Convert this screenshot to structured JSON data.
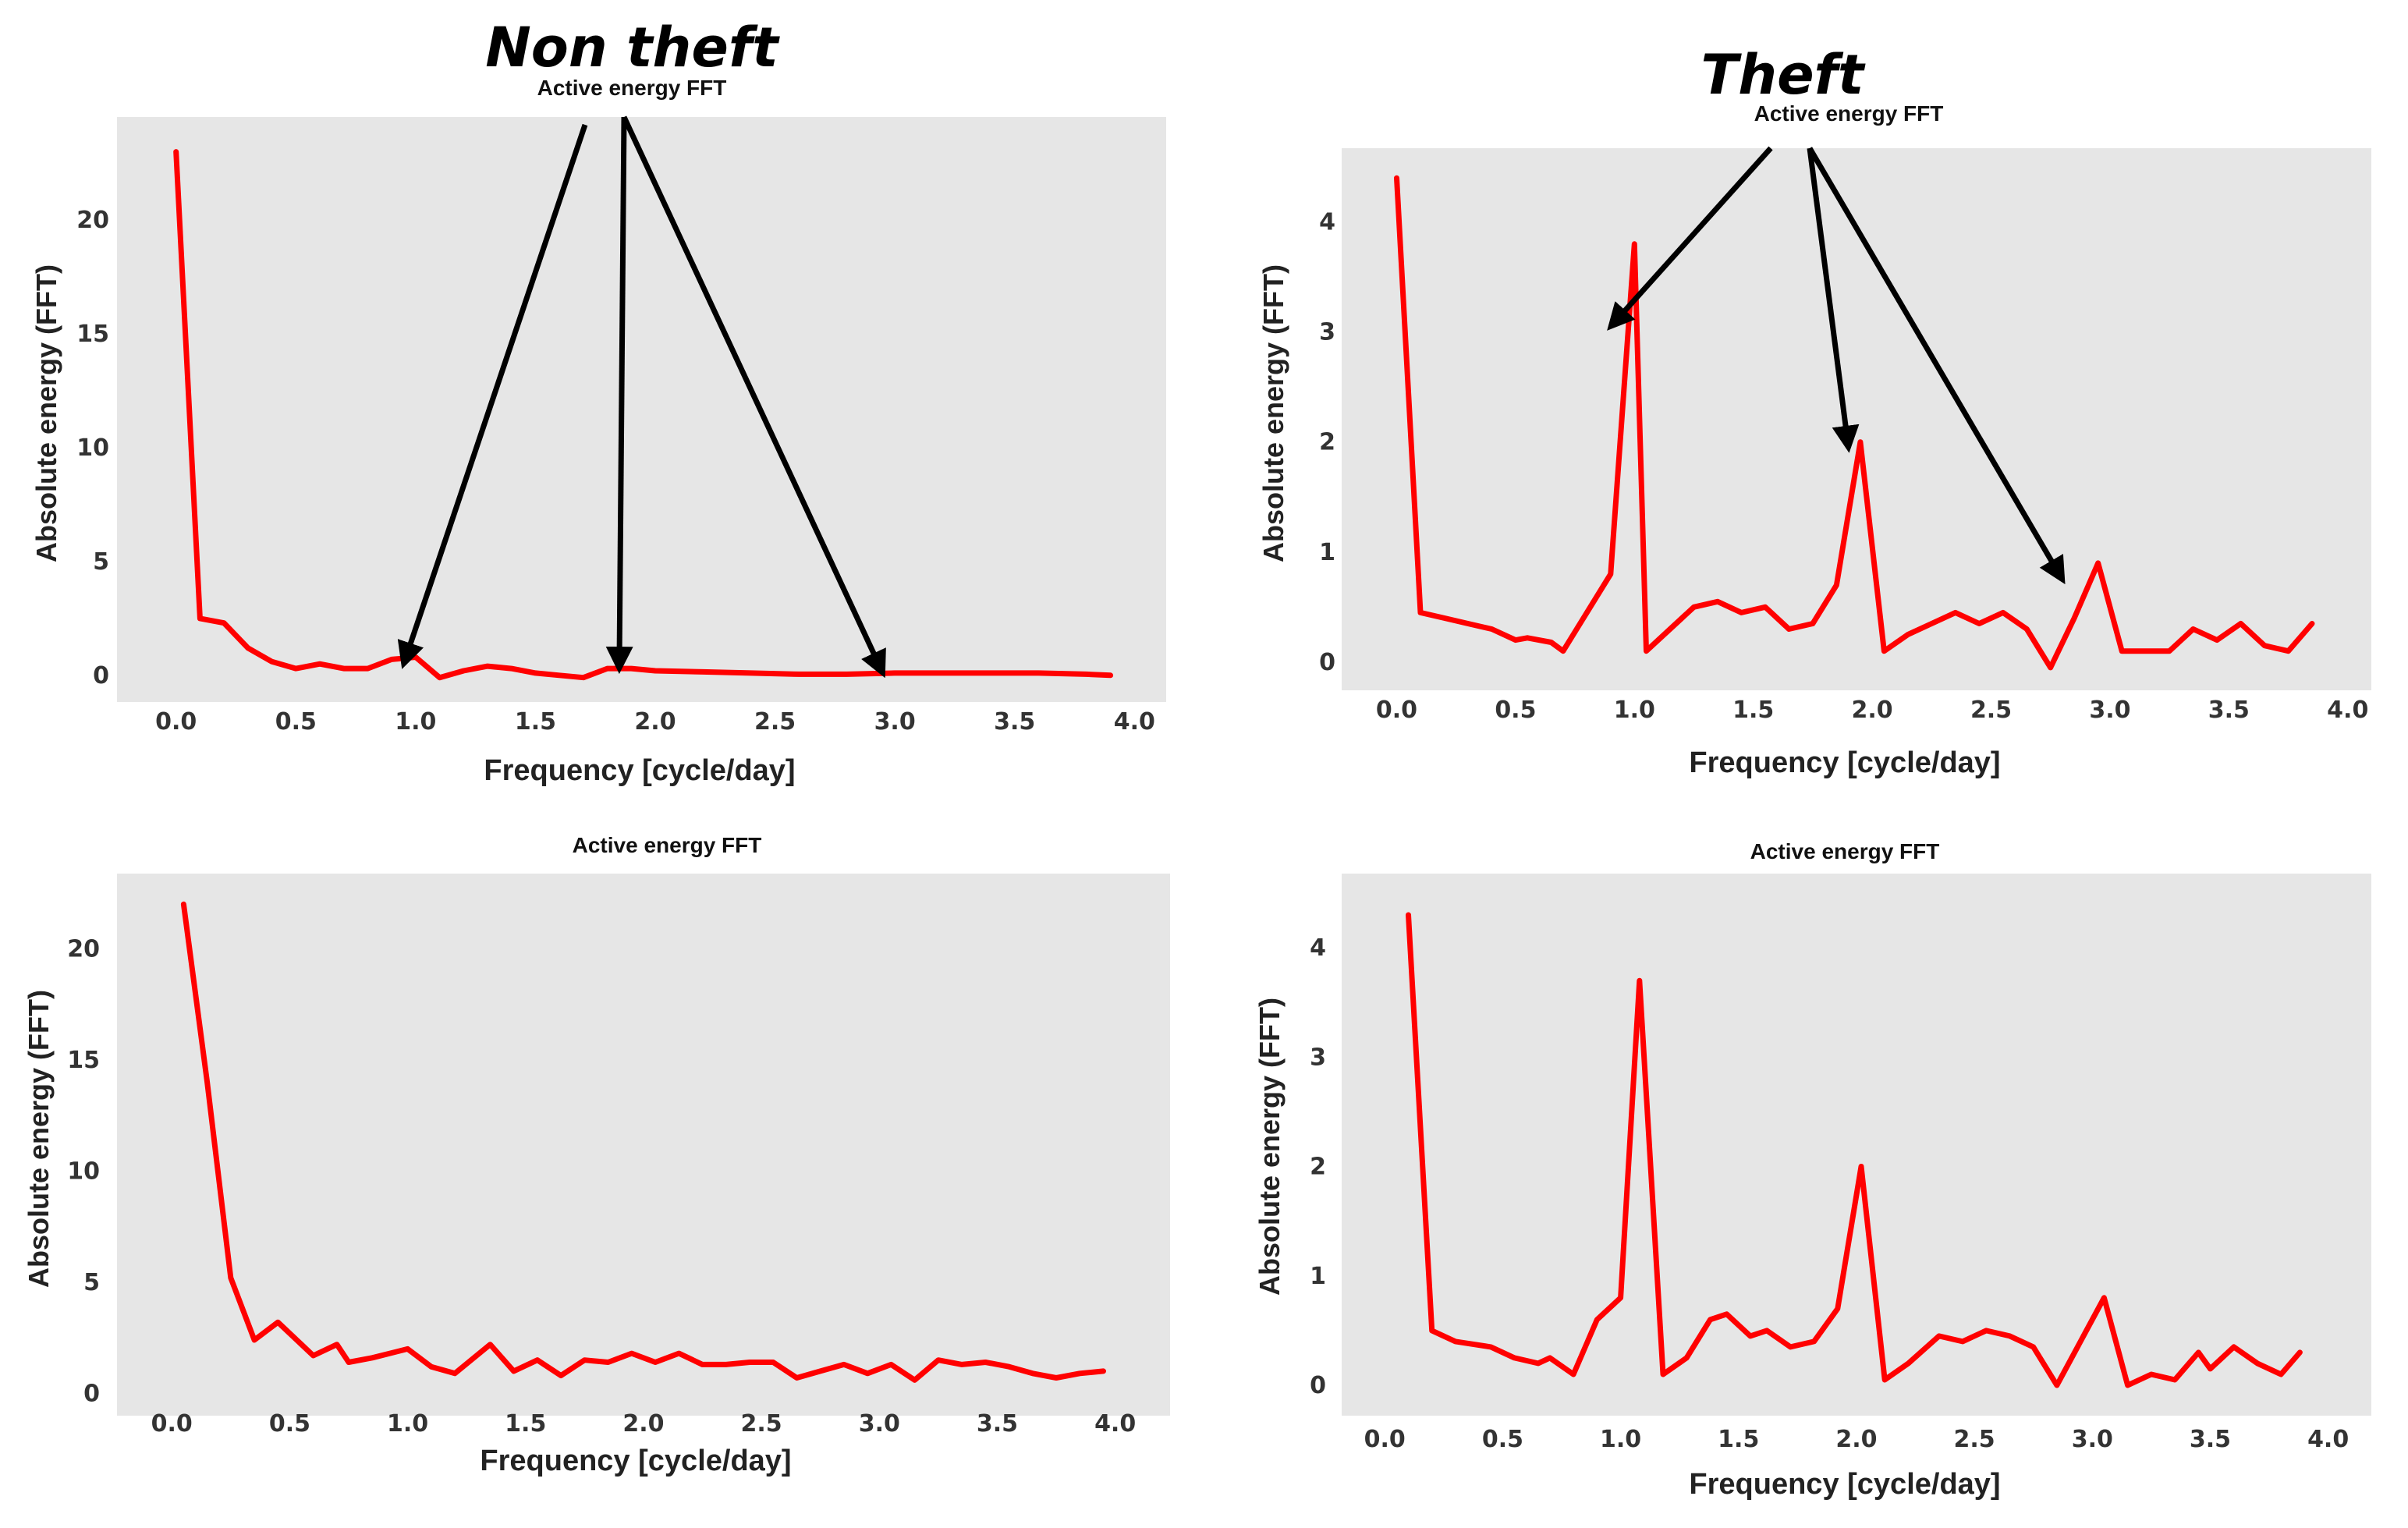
{
  "headers": {
    "left": "Non theft",
    "right": "Theft"
  },
  "colors": {
    "line": "#ff0000",
    "panel_bg": "#e6e6e6",
    "arrow": "#000000"
  },
  "chart_data": [
    {
      "id": "nontheft_top",
      "type": "line",
      "title": "Active energy FFT",
      "xlabel": "Frequency [cycle/day]",
      "ylabel": "Absolute energy (FFT)",
      "xlim": [
        -0.1,
        4.1
      ],
      "ylim": [
        -1,
        23.5
      ],
      "xticks": [
        0.0,
        0.5,
        1.0,
        1.5,
        2.0,
        2.5,
        3.0,
        3.5,
        4.0
      ],
      "xtick_labels": [
        "0.0",
        "0.5",
        "1.0",
        "1.5",
        "2.0",
        "2.5",
        "3.0",
        "3.5",
        "4.0"
      ],
      "yticks": [
        0,
        5,
        10,
        15,
        20
      ],
      "ytick_labels": [
        "0",
        "5",
        "10",
        "15",
        "20"
      ],
      "x": [
        0.0,
        0.1,
        0.2,
        0.3,
        0.4,
        0.5,
        0.6,
        0.7,
        0.8,
        0.9,
        1.0,
        1.1,
        1.2,
        1.3,
        1.4,
        1.5,
        1.6,
        1.7,
        1.8,
        1.9,
        2.0,
        2.2,
        2.4,
        2.6,
        2.8,
        3.0,
        3.2,
        3.4,
        3.6,
        3.8,
        3.9
      ],
      "y": [
        23.0,
        2.5,
        2.3,
        1.2,
        0.6,
        0.3,
        0.5,
        0.3,
        0.3,
        0.7,
        0.8,
        -0.1,
        0.2,
        0.4,
        0.3,
        0.1,
        0.0,
        -0.1,
        0.3,
        0.3,
        0.2,
        0.15,
        0.1,
        0.05,
        0.05,
        0.1,
        0.1,
        0.1,
        0.1,
        0.05,
        0.0
      ],
      "arrow_targets": [
        [
          0.95,
          0.5
        ],
        [
          1.85,
          0.3
        ],
        [
          2.95,
          0.1
        ]
      ]
    },
    {
      "id": "theft_top",
      "type": "line",
      "title": "Active energy FFT",
      "xlabel": "Frequency [cycle/day]",
      "ylabel": "Absolute energy (FFT)",
      "xlim": [
        -0.1,
        4.05
      ],
      "ylim": [
        -0.15,
        4.6
      ],
      "xticks": [
        0.0,
        0.5,
        1.0,
        1.5,
        2.0,
        2.5,
        3.0,
        3.5,
        4.0
      ],
      "xtick_labels": [
        "0.0",
        "0.5",
        "1.0",
        "1.5",
        "2.0",
        "2.5",
        "3.0",
        "3.5",
        "4.0"
      ],
      "yticks": [
        0,
        1,
        2,
        3,
        4
      ],
      "ytick_labels": [
        "0",
        "1",
        "2",
        "3",
        "4"
      ],
      "x": [
        0.0,
        0.1,
        0.2,
        0.3,
        0.4,
        0.5,
        0.55,
        0.65,
        0.7,
        0.8,
        0.9,
        1.0,
        1.05,
        1.15,
        1.25,
        1.35,
        1.45,
        1.55,
        1.65,
        1.75,
        1.85,
        1.95,
        2.05,
        2.15,
        2.25,
        2.35,
        2.45,
        2.55,
        2.65,
        2.75,
        2.85,
        2.95,
        3.05,
        3.15,
        3.25,
        3.35,
        3.45,
        3.55,
        3.65,
        3.75,
        3.85
      ],
      "y": [
        4.4,
        0.45,
        0.4,
        0.35,
        0.3,
        0.2,
        0.22,
        0.18,
        0.1,
        0.45,
        0.8,
        3.8,
        0.1,
        0.3,
        0.5,
        0.55,
        0.45,
        0.5,
        0.3,
        0.35,
        0.7,
        2.0,
        0.1,
        0.25,
        0.35,
        0.45,
        0.35,
        0.45,
        0.3,
        -0.05,
        0.4,
        0.9,
        0.1,
        0.1,
        0.1,
        0.3,
        0.2,
        0.35,
        0.15,
        0.1,
        0.35
      ],
      "arrow_targets": [
        [
          0.9,
          3.05
        ],
        [
          1.9,
          1.95
        ],
        [
          2.8,
          0.75
        ]
      ]
    },
    {
      "id": "nontheft_bottom",
      "type": "line",
      "title": "Active energy FFT",
      "xlabel": "Frequency [cycle/day]",
      "ylabel": "Absolute energy (FFT)",
      "xlim": [
        -0.1,
        4.15
      ],
      "ylim": [
        -0.3,
        22.5
      ],
      "xticks": [
        0.0,
        0.5,
        1.0,
        1.5,
        2.0,
        2.5,
        3.0,
        3.5,
        4.0
      ],
      "xtick_labels": [
        "0.0",
        "0.5",
        "1.0",
        "1.5",
        "2.0",
        "2.5",
        "3.0",
        "3.5",
        "4.0"
      ],
      "yticks": [
        0,
        5,
        10,
        15,
        20
      ],
      "ytick_labels": [
        "0",
        "5",
        "10",
        "15",
        "20"
      ],
      "x": [
        0.05,
        0.15,
        0.25,
        0.35,
        0.45,
        0.55,
        0.6,
        0.7,
        0.75,
        0.85,
        1.0,
        1.1,
        1.2,
        1.35,
        1.45,
        1.55,
        1.65,
        1.75,
        1.85,
        1.95,
        2.05,
        2.15,
        2.25,
        2.35,
        2.45,
        2.55,
        2.65,
        2.75,
        2.85,
        2.95,
        3.05,
        3.15,
        3.25,
        3.35,
        3.45,
        3.55,
        3.65,
        3.75,
        3.85,
        3.95
      ],
      "y": [
        22.0,
        14.0,
        5.2,
        2.4,
        3.2,
        2.2,
        1.7,
        2.2,
        1.4,
        1.6,
        2.0,
        1.2,
        0.9,
        2.2,
        1.0,
        1.5,
        0.8,
        1.5,
        1.4,
        1.8,
        1.4,
        1.8,
        1.3,
        1.3,
        1.4,
        1.4,
        0.7,
        1.0,
        1.3,
        0.9,
        1.3,
        0.6,
        1.5,
        1.3,
        1.4,
        1.2,
        0.9,
        0.7,
        0.9,
        1.0
      ]
    },
    {
      "id": "theft_bottom",
      "type": "line",
      "title": "Active energy FFT",
      "xlabel": "Frequency  [cycle/day]",
      "ylabel": "Absolute energy (FFT)",
      "xlim": [
        -0.1,
        4.15
      ],
      "ylim": [
        -0.1,
        4.5
      ],
      "xticks": [
        0.0,
        0.5,
        1.0,
        1.5,
        2.0,
        2.5,
        3.0,
        3.5,
        4.0
      ],
      "xtick_labels": [
        "0.0",
        "0.5",
        "1.0",
        "1.5",
        "2.0",
        "2.5",
        "3.0",
        "3.5",
        "4.0"
      ],
      "yticks": [
        0,
        1,
        2,
        3,
        4
      ],
      "ytick_labels": [
        "0",
        "1",
        "2",
        "3",
        "4"
      ],
      "x": [
        0.1,
        0.2,
        0.3,
        0.45,
        0.55,
        0.65,
        0.7,
        0.8,
        0.9,
        1.0,
        1.08,
        1.18,
        1.28,
        1.38,
        1.45,
        1.55,
        1.62,
        1.72,
        1.82,
        1.92,
        2.02,
        2.12,
        2.22,
        2.35,
        2.45,
        2.55,
        2.65,
        2.75,
        2.85,
        3.05,
        3.15,
        3.25,
        3.35,
        3.45,
        3.5,
        3.6,
        3.7,
        3.8,
        3.88
      ],
      "y": [
        4.3,
        0.5,
        0.4,
        0.35,
        0.25,
        0.2,
        0.25,
        0.1,
        0.6,
        0.8,
        3.7,
        0.1,
        0.25,
        0.6,
        0.65,
        0.45,
        0.5,
        0.35,
        0.4,
        0.7,
        2.0,
        0.05,
        0.2,
        0.45,
        0.4,
        0.5,
        0.45,
        0.35,
        0.0,
        0.8,
        0.0,
        0.1,
        0.05,
        0.3,
        0.15,
        0.35,
        0.2,
        0.1,
        0.3
      ]
    }
  ]
}
